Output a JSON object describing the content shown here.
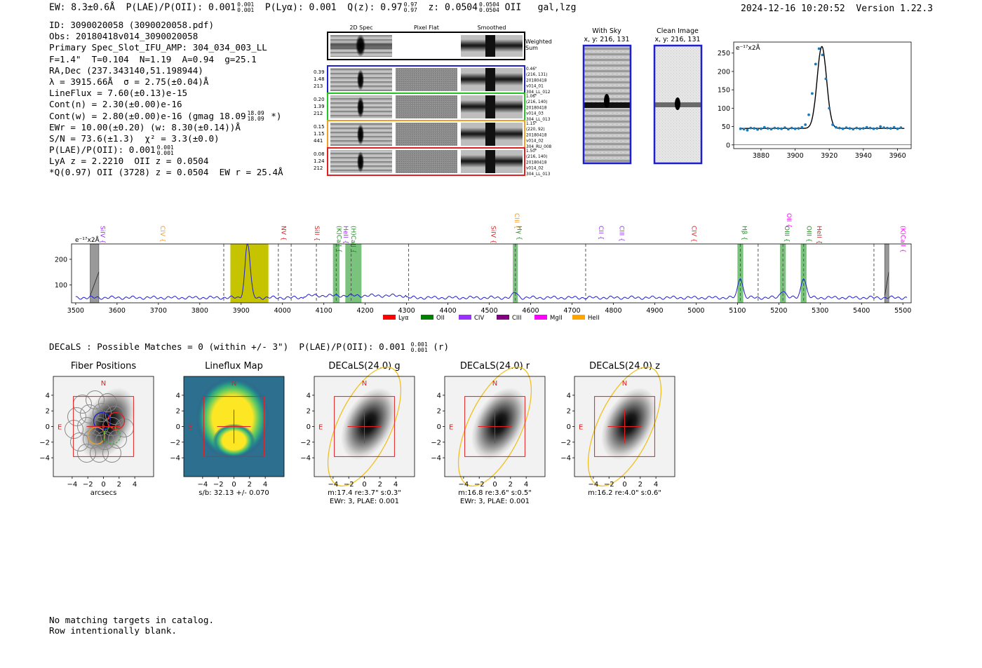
{
  "header": {
    "ew": "EW: 8.3±0.6Å",
    "plae_label": "P(LAE)/P(OII): 0.001",
    "plae_sup": "0.001",
    "plae_sub": "0.001",
    "plya": "P(Lyα): 0.001",
    "q_label": "Q(z): 0.97",
    "q_sup": "0.97",
    "q_sub": "0.97",
    "z_label": "z: 0.0504",
    "z_sup": "0.0504",
    "z_sub": "0.0504",
    "line": "OII",
    "class": "gal,lzg",
    "datetime": "2024-12-16 10:20:52",
    "version": "Version 1.22.3"
  },
  "info": {
    "id": "ID: 3090020058 (3090020058.pdf)",
    "obs": "Obs: 20180418v014_3090020058",
    "slot": "Primary Spec_Slot_IFU_AMP: 304_034_003_LL",
    "params": "F=1.4\"  T=0.104  N=1.19  A=0.94  g=25.1",
    "radec": "RA,Dec (237.343140,51.198944)",
    "lambda": "λ = 3915.66Å  σ = 2.75(±0.04)Å",
    "lineflux": "LineFlux = 7.60(±0.13)e-15",
    "contn": "Cont(n) = 2.30(±0.00)e-16",
    "contw_pre": "Cont(w) = 2.80(±0.00)e-16 (gmag 18.09",
    "contw_sup": "18.09",
    "contw_sub": "18.09",
    "contw_post": "*)",
    "ewr": "EWr = 10.00(±0.20) (w: 8.30(±0.14))Å",
    "sn": "S/N = 73.6(±1.3)  χ² = 3.3(±0.0)",
    "plae_label": "P(LAE)/P(OII): 0.001",
    "plae_sup": "0.001",
    "plae_sub": "0.001",
    "lya": "LyA z = 2.2210  OII z = 0.0504",
    "q": "*Q(0.97) OII (3728) z = 0.0504  EW r = 25.4Å"
  },
  "cutouts": {
    "col_titles": [
      "2D Spec",
      "Pixel Flat",
      "Smoothed"
    ],
    "weighted_label": [
      "Weighted",
      "Sum"
    ],
    "rows": [
      {
        "left": [
          "0.39",
          "1.48",
          "213"
        ],
        "right": [
          "0.46\"",
          "(216, 131)",
          "20180418",
          "v014_01",
          "304_LL_012"
        ],
        "color": "#1f1fd0"
      },
      {
        "left": [
          "0.20",
          "1.39",
          "212"
        ],
        "right": [
          "1.06\"",
          "(216, 140)",
          "20180418",
          "v014_03",
          "304_LL_013"
        ],
        "color": "#22c322"
      },
      {
        "left": [
          "0.15",
          "1.15",
          "441"
        ],
        "right": [
          "1.15\"",
          "(220, 92)",
          "20180418",
          "v014_02",
          "304_RU_008"
        ],
        "color": "#f0a020"
      },
      {
        "left": [
          "0.08",
          "1.24",
          "212"
        ],
        "right": [
          "1.50\"",
          "(216, 140)",
          "20180418",
          "v014_02",
          "304_LL_013"
        ],
        "color": "#e02020"
      }
    ]
  },
  "sky": {
    "with_sky_title": "With Sky",
    "with_sky_xy": "x, y: 216, 131",
    "clean_title": "Clean Image",
    "clean_xy": "x, y: 216, 131"
  },
  "zoom_chart": {
    "units": "e⁻¹⁷x2Å",
    "xticks": [
      "3880",
      "3900",
      "3920",
      "3940",
      "3960"
    ],
    "yticks": [
      "0",
      "50",
      "100",
      "150",
      "200",
      "250"
    ]
  },
  "full_spec": {
    "units": "e⁻¹⁷x2Å",
    "xticks": [
      "3500",
      "3600",
      "3700",
      "3800",
      "3900",
      "4000",
      "4100",
      "4200",
      "4300",
      "4400",
      "4500",
      "4600",
      "4700",
      "4800",
      "4900",
      "5000",
      "5100",
      "5200",
      "5300",
      "5400",
      "5500"
    ],
    "yticks": [
      "100",
      "200"
    ],
    "line_labels": [
      {
        "text": "SiIV {",
        "color": "#9b30ff"
      },
      {
        "text": "CIV {",
        "color": "#f0a020"
      },
      {
        "text": "NV {",
        "color": "#e02020"
      },
      {
        "text": "SiII {",
        "color": "#e02020"
      },
      {
        "text": "(K)CaII {",
        "color": "#228b22"
      },
      {
        "text": "HeII {",
        "color": "#9b30ff"
      },
      {
        "text": "(H)CaII {",
        "color": "#228b22"
      },
      {
        "text": "SiIV {",
        "color": "#e02020"
      },
      {
        "text": "CIII {",
        "color": "#f0a020"
      },
      {
        "text": "Hγ {",
        "color": "#228b22"
      },
      {
        "text": "CII {",
        "color": "#9b30ff"
      },
      {
        "text": "CIII {",
        "color": "#9b30ff"
      },
      {
        "text": "CIV {",
        "color": "#e02020"
      },
      {
        "text": "Hβ {",
        "color": "#228b22"
      },
      {
        "text": "OIII {",
        "color": "#228b22"
      },
      {
        "text": "OII {",
        "color": "#ff00ff"
      },
      {
        "text": "OIII {",
        "color": "#228b22"
      },
      {
        "text": "HeII {",
        "color": "#e02020"
      },
      {
        "text": "(K)CaII {",
        "color": "#ff00ff"
      }
    ],
    "legend": [
      {
        "label": "Lyα",
        "color": "#ff0000"
      },
      {
        "label": "OII",
        "color": "#008000"
      },
      {
        "label": "CIV",
        "color": "#9b30ff"
      },
      {
        "label": "CIII",
        "color": "#800080"
      },
      {
        "label": "MgII",
        "color": "#ff00ff"
      },
      {
        "label": "HeII",
        "color": "#ffa500"
      }
    ]
  },
  "decals": {
    "head_pre": "DECaLS : Possible Matches = 0 (within +/- 3\")  P(LAE)/P(OII): 0.001",
    "head_sup": "0.001",
    "head_sub": "0.001",
    "head_post": "(r)",
    "panels": [
      {
        "title": "Fiber Positions",
        "caption": "arcsecs",
        "caption2": ""
      },
      {
        "title": "Lineflux Map",
        "caption": "s/b: 32.13 +/- 0.070",
        "caption2": ""
      },
      {
        "title": "DECaLS(24.0) g",
        "caption": "m:17.4  re:3.7\"  s:0.3\"",
        "caption2": "EWr: 3, PLAE: 0.001"
      },
      {
        "title": "DECaLS(24.0) r",
        "caption": "m:16.8  re:3.6\"  s:0.5\"",
        "caption2": "EWr: 3, PLAE: 0.001"
      },
      {
        "title": "DECaLS(24.0) z",
        "caption": "m:16.2  re:4.0\"  s:0.6\"",
        "caption2": ""
      }
    ],
    "axis_ticks": [
      "−4",
      "−2",
      "0",
      "2",
      "4"
    ],
    "north": "N",
    "east": "E"
  },
  "footer": {
    "line1": "No matching targets in catalog.",
    "line2": "Row intentionally blank."
  },
  "chart_data": [
    {
      "type": "scatter",
      "title": "",
      "ylabel": "e-17x2Å",
      "xlim": [
        3864,
        3968
      ],
      "ylim": [
        -10,
        280
      ],
      "x": [
        3868,
        3870,
        3872,
        3874,
        3876,
        3878,
        3880,
        3882,
        3884,
        3886,
        3888,
        3890,
        3892,
        3894,
        3896,
        3898,
        3900,
        3902,
        3904,
        3906,
        3908,
        3910,
        3912,
        3914,
        3916,
        3918,
        3920,
        3922,
        3924,
        3926,
        3928,
        3930,
        3932,
        3934,
        3936,
        3938,
        3940,
        3942,
        3944,
        3946,
        3948,
        3950,
        3952,
        3954,
        3956,
        3958,
        3960,
        3962
      ],
      "y": [
        44,
        43,
        40,
        46,
        45,
        42,
        44,
        48,
        45,
        43,
        46,
        45,
        44,
        47,
        43,
        46,
        44,
        45,
        48,
        55,
        82,
        140,
        220,
        262,
        245,
        180,
        100,
        55,
        48,
        46,
        44,
        47,
        45,
        43,
        46,
        44,
        45,
        48,
        46,
        44,
        45,
        50,
        47,
        46,
        45,
        48,
        44,
        47
      ],
      "fit_peak": 268,
      "fit_center": 3915.66,
      "fit_sigma": 2.75,
      "fit_continuum": 45
    },
    {
      "type": "line",
      "title": "",
      "ylabel": "e-17x2Å",
      "xlim": [
        3490,
        5520
      ],
      "ylim": [
        30,
        260
      ],
      "baseline": 50,
      "emission_lines": [
        {
          "x": 3915.66,
          "height": 265,
          "sigma": 2.75
        },
        {
          "x": 4563,
          "height": 72,
          "sigma": 2.5
        },
        {
          "x": 5107,
          "height": 130,
          "sigma": 2.6
        },
        {
          "x": 5210,
          "height": 80,
          "sigma": 2.7
        },
        {
          "x": 5260,
          "height": 130,
          "sigma": 2.7
        }
      ],
      "dashed_lines": [
        3858,
        3990,
        4021,
        4082,
        4130,
        4166,
        4305,
        4563,
        4733,
        5107,
        5150,
        5210,
        5260,
        5430
      ],
      "green_bands": [
        [
          4122,
          4138
        ],
        [
          4152,
          4191
        ],
        [
          4557,
          4569
        ],
        [
          5100,
          5114
        ],
        [
          5203,
          5217
        ],
        [
          5253,
          5267
        ]
      ],
      "yellow_band": [
        3874,
        3966
      ],
      "gray_bands": [
        [
          3535,
          3556
        ],
        [
          5456,
          5466
        ]
      ]
    }
  ]
}
